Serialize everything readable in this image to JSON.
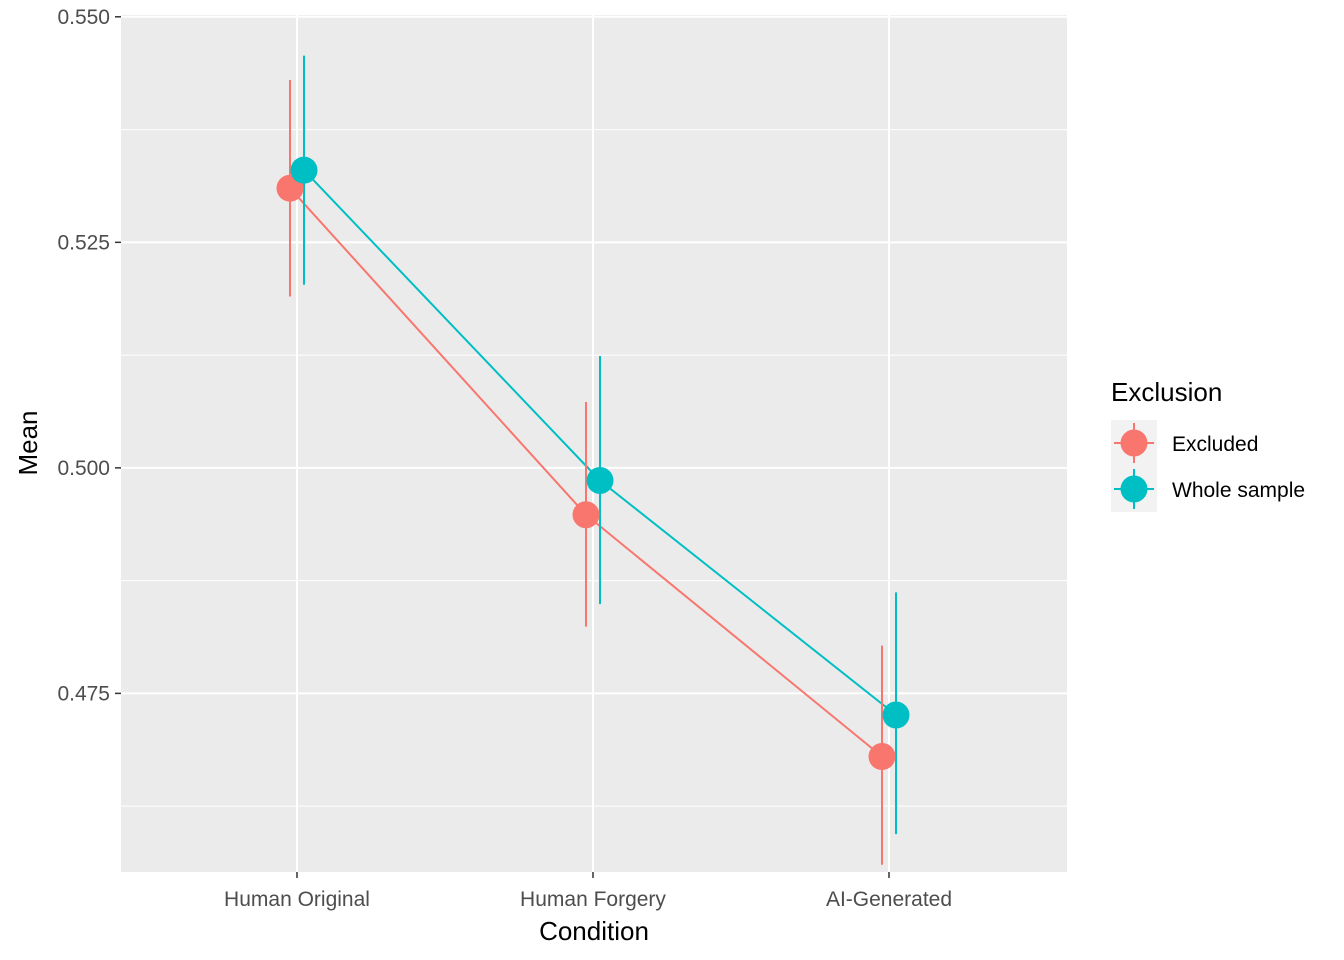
{
  "chart_data": {
    "type": "line",
    "xlabel": "Condition",
    "ylabel": "Mean",
    "categories": [
      "Human Original",
      "Human Forgery",
      "AI-Generated"
    ],
    "ylim": [
      0.4552,
      0.5502
    ],
    "y_ticks": [
      0.475,
      0.5,
      0.525,
      0.55
    ],
    "y_tick_labels": [
      "0.475",
      "0.500",
      "0.525",
      "0.550"
    ],
    "grid": true,
    "legend": {
      "title": "Exclusion",
      "placement": "right"
    },
    "series": [
      {
        "name": "Excluded",
        "color": "#F8766D",
        "values": [
          0.531,
          0.4948,
          0.468
        ],
        "lower": [
          0.519,
          0.4824,
          0.456
        ],
        "upper": [
          0.543,
          0.5073,
          0.4803
        ]
      },
      {
        "name": "Whole sample",
        "color": "#00BFC4",
        "values": [
          0.533,
          0.4986,
          0.4726
        ],
        "lower": [
          0.5203,
          0.4849,
          0.4594
        ],
        "upper": [
          0.5457,
          0.5124,
          0.4862
        ]
      }
    ]
  }
}
